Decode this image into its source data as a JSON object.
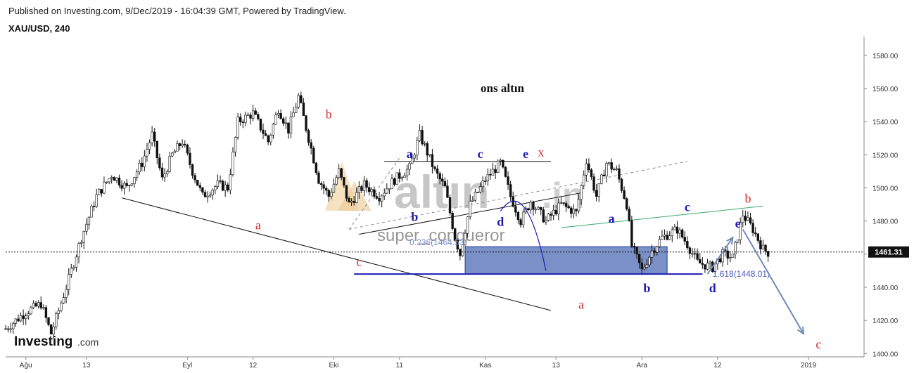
{
  "header": {
    "published": "Published on Investing.com, 9/Dec/2019 - 16:04:39 GMT, Powered by TradingView.",
    "symbol": "XAU/USD, 240"
  },
  "brand": {
    "logo_text": "Investing",
    "logo_suffix": ".com",
    "watermark_main": "altın",
    "watermark_suffix": ".in",
    "watermark_sub": "super_conqueror"
  },
  "chart_data": {
    "type": "candlestick",
    "title": "ons altın",
    "ylim": [
      1398,
      1588
    ],
    "y_ticks": [
      1400,
      1420,
      1440,
      1460,
      1480,
      1500,
      1520,
      1540,
      1560,
      1580
    ],
    "y_tick_labels": [
      "1400.00",
      "1420.00",
      "1440.00",
      "1460.00",
      "1480.00",
      "1500.00",
      "1520.00",
      "1540.00",
      "1560.00",
      "1580.00"
    ],
    "x_tick_labels": [
      "Ağu",
      "13",
      "Eyl",
      "12",
      "Eki",
      "11",
      "Kas",
      "13",
      "Ara",
      "12",
      "2019"
    ],
    "current_price": 1461.31,
    "current_price_label": "1461.31",
    "price_path": [
      [
        0,
        1415
      ],
      [
        4,
        1425
      ],
      [
        7,
        1430
      ],
      [
        9,
        1412
      ],
      [
        12,
        1440
      ],
      [
        15,
        1470
      ],
      [
        18,
        1495
      ],
      [
        21,
        1508
      ],
      [
        24,
        1500
      ],
      [
        27,
        1515
      ],
      [
        29,
        1532
      ],
      [
        31,
        1505
      ],
      [
        33,
        1520
      ],
      [
        35,
        1528
      ],
      [
        37,
        1510
      ],
      [
        39,
        1495
      ],
      [
        42,
        1502
      ],
      [
        44,
        1500
      ],
      [
        46,
        1540
      ],
      [
        49,
        1545
      ],
      [
        52,
        1528
      ],
      [
        54,
        1548
      ],
      [
        56,
        1535
      ],
      [
        58,
        1555
      ],
      [
        60,
        1530
      ],
      [
        62,
        1505
      ],
      [
        64,
        1495
      ],
      [
        66,
        1510
      ],
      [
        68,
        1490
      ],
      [
        71,
        1502
      ],
      [
        74,
        1495
      ],
      [
        77,
        1505
      ],
      [
        80,
        1512
      ],
      [
        82,
        1532
      ],
      [
        83,
        1525
      ],
      [
        85,
        1510
      ],
      [
        87,
        1500
      ],
      [
        89,
        1470
      ],
      [
        90,
        1460
      ],
      [
        92,
        1490
      ],
      [
        95,
        1505
      ],
      [
        98,
        1515
      ],
      [
        100,
        1495
      ],
      [
        102,
        1480
      ],
      [
        104,
        1492
      ],
      [
        107,
        1480
      ],
      [
        110,
        1490
      ],
      [
        113,
        1485
      ],
      [
        115,
        1517
      ],
      [
        117,
        1495
      ],
      [
        119,
        1515
      ],
      [
        121,
        1510
      ],
      [
        123,
        1490
      ],
      [
        124,
        1465
      ],
      [
        126,
        1450
      ],
      [
        128,
        1462
      ],
      [
        130,
        1470
      ],
      [
        133,
        1475
      ],
      [
        135,
        1466
      ],
      [
        137,
        1455
      ],
      [
        140,
        1452
      ],
      [
        142,
        1460
      ],
      [
        144,
        1458
      ],
      [
        146,
        1484
      ],
      [
        148,
        1475
      ],
      [
        150,
        1463
      ],
      [
        151,
        1461
      ]
    ],
    "fib_levels": [
      {
        "label": "0.236(1464.53)",
        "value": 1464.53
      },
      {
        "label": "1.618(1448.01)",
        "value": 1448.01
      }
    ],
    "wave_labels": [
      {
        "text": "a",
        "x": 50,
        "y": 1475,
        "color": "#d42a2a"
      },
      {
        "text": "b",
        "x": 64,
        "y": 1542,
        "color": "#d42a2a"
      },
      {
        "text": "c",
        "x": 70,
        "y": 1453,
        "color": "#d42a2a"
      },
      {
        "text": "a",
        "x": 114,
        "y": 1427,
        "color": "#d42a2a"
      },
      {
        "text": "x",
        "x": 106,
        "y": 1519,
        "color": "#d42a2a"
      },
      {
        "text": "b",
        "x": 147,
        "y": 1491,
        "color": "#d42a2a"
      },
      {
        "text": "c",
        "x": 161,
        "y": 1403,
        "color": "#d42a2a"
      },
      {
        "text": "a",
        "x": 80,
        "y": 1518,
        "color": "#1c1cb4"
      },
      {
        "text": "b",
        "x": 81,
        "y": 1480,
        "color": "#1c1cb4"
      },
      {
        "text": "c",
        "x": 94,
        "y": 1518,
        "color": "#1c1cb4"
      },
      {
        "text": "d",
        "x": 98,
        "y": 1477,
        "color": "#1c1cb4"
      },
      {
        "text": "e",
        "x": 103,
        "y": 1518,
        "color": "#1c1cb4"
      },
      {
        "text": "a",
        "x": 120,
        "y": 1479,
        "color": "#1c1cb4"
      },
      {
        "text": "b",
        "x": 127,
        "y": 1437,
        "color": "#1c1cb4"
      },
      {
        "text": "c",
        "x": 135,
        "y": 1486,
        "color": "#1c1cb4"
      },
      {
        "text": "e",
        "x": 145,
        "y": 1476,
        "color": "#1c1cb4"
      },
      {
        "text": "d",
        "x": 140,
        "y": 1437,
        "color": "#1c1cb4"
      }
    ]
  },
  "colors": {
    "candle": "#111111",
    "wave_red": "#d42a2a",
    "wave_blue": "#1c1cb4",
    "zone_fill": "#5a74b8",
    "arrow": "#6e8ab8",
    "watermark_orange": "#e4a640"
  }
}
